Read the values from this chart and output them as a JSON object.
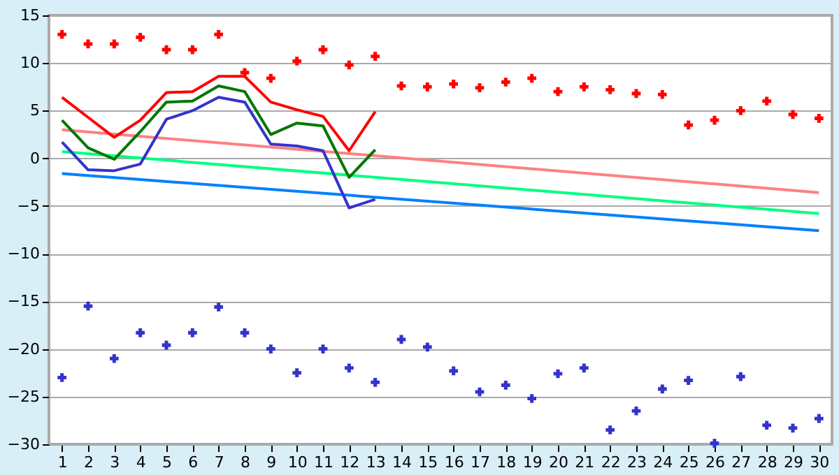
{
  "chart_data": {
    "type": "line",
    "x": [
      1,
      2,
      3,
      4,
      5,
      6,
      7,
      8,
      9,
      10,
      11,
      12,
      13,
      14,
      15,
      16,
      17,
      18,
      19,
      20,
      21,
      22,
      23,
      24,
      25,
      26,
      27,
      28,
      29,
      30
    ],
    "xlim": [
      0.5,
      30.5
    ],
    "xticks": [
      1,
      2,
      3,
      4,
      5,
      6,
      7,
      8,
      9,
      10,
      11,
      12,
      13,
      14,
      15,
      16,
      17,
      18,
      19,
      20,
      21,
      22,
      23,
      24,
      25,
      26,
      27,
      28,
      29,
      30
    ],
    "ylim": [
      -30,
      15
    ],
    "yticks": [
      -30,
      -25,
      -20,
      -15,
      -10,
      -5,
      0,
      5,
      10,
      15
    ],
    "grid": "y",
    "line_style": "solid",
    "marker": "none",
    "series": [
      {
        "color": "#ff8080",
        "x": [
          1,
          30
        ],
        "values": [
          3.0,
          -3.6
        ]
      },
      {
        "color": "#00ff80",
        "x": [
          1,
          30
        ],
        "values": [
          0.7,
          -5.8
        ]
      },
      {
        "color": "#0080ff",
        "x": [
          1,
          30
        ],
        "values": [
          -1.6,
          -7.6
        ]
      },
      {
        "color": "#ff0000",
        "x": [
          1,
          2,
          3,
          4,
          5,
          6,
          7,
          8,
          9,
          10,
          11,
          12,
          13
        ],
        "values": [
          6.4,
          4.3,
          2.2,
          4.0,
          6.9,
          7.0,
          8.6,
          8.6,
          5.9,
          5.1,
          4.4,
          0.8,
          4.9
        ]
      },
      {
        "color": "#007700",
        "x": [
          1,
          2,
          3,
          4,
          5,
          6,
          7,
          8,
          9,
          10,
          11,
          12,
          13
        ],
        "values": [
          4.0,
          1.1,
          -0.1,
          2.8,
          5.9,
          6.0,
          7.6,
          7.0,
          2.5,
          3.7,
          3.4,
          -2.0,
          0.9
        ]
      },
      {
        "color": "#3333cc",
        "x": [
          1,
          2,
          3,
          4,
          5,
          6,
          7,
          8,
          9,
          10,
          11,
          12,
          13
        ],
        "values": [
          1.7,
          -1.2,
          -1.3,
          -0.6,
          4.1,
          5.0,
          6.4,
          5.9,
          1.5,
          1.3,
          0.8,
          -5.2,
          -4.3
        ]
      },
      {
        "type": "scatter",
        "marker": "cross",
        "color": "#ff0000",
        "values": [
          13.0,
          12.0,
          12.0,
          12.7,
          11.4,
          11.4,
          13.0,
          9.0,
          8.4,
          10.2,
          11.4,
          9.8,
          10.7,
          7.6,
          7.5,
          7.8,
          7.4,
          8.0,
          8.4,
          7.0,
          7.5,
          7.2,
          6.8,
          6.7,
          3.5,
          4.0,
          5.0,
          6.0,
          4.6,
          4.2
        ]
      },
      {
        "type": "scatter",
        "marker": "cross",
        "color": "#3333cc",
        "values": [
          -23.0,
          -15.5,
          -21.0,
          -18.3,
          -19.6,
          -18.3,
          -15.6,
          -18.3,
          -20.0,
          -22.5,
          -20.0,
          -22.0,
          -23.5,
          -19.0,
          -19.8,
          -22.3,
          -24.5,
          -23.8,
          -25.2,
          -22.6,
          -22.0,
          -28.5,
          -26.5,
          -24.2,
          -23.3,
          -29.9,
          -22.9,
          -28.0,
          -28.3,
          -27.3
        ]
      }
    ]
  }
}
